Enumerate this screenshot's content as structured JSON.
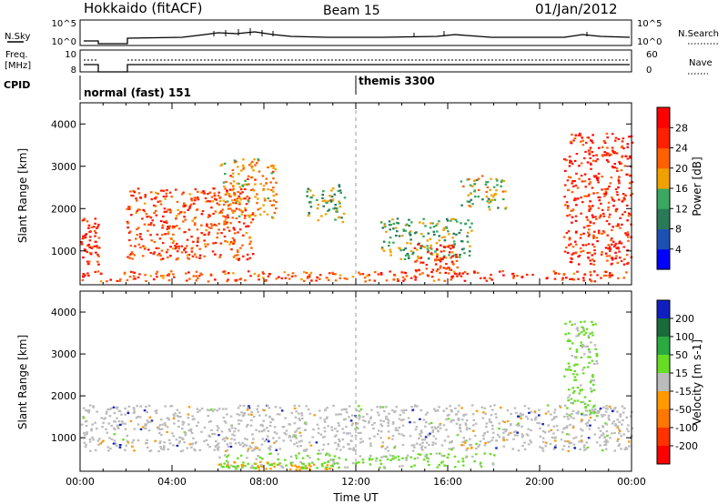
{
  "header": {
    "station": "Hokkaido (fitACF)",
    "beam": "Beam 15",
    "date": "01/Jan/2012"
  },
  "small_panels": {
    "nsky_label": "N.Sky",
    "nsearch_label": "N.Search",
    "freq_label_1": "Freq.",
    "freq_label_2": "[MHz]",
    "nave_label": "Nave",
    "cpid_label": "CPID",
    "nsky_ticks": [
      "10^5",
      "10^0"
    ],
    "nsearch_ticks": [
      "10^5",
      "10^0"
    ],
    "freq_ticks": [
      "10",
      "8"
    ],
    "nave_ticks": [
      "60",
      "0"
    ]
  },
  "cpid": {
    "modes": [
      {
        "name": "normal (fast) 151",
        "start_hour": 0
      },
      {
        "name": "themis 3300",
        "start_hour": 12
      }
    ]
  },
  "chart_data": [
    {
      "type": "heatmap",
      "title": "",
      "ylabel": "Slant Range [km]",
      "xlabel": "",
      "xlim_hours": [
        0,
        24
      ],
      "ylim": [
        200,
        4500
      ],
      "y_ticks": [
        "1000",
        "2000",
        "3000",
        "4000"
      ],
      "colorbar": {
        "label": "Power [dB]",
        "ticks": [
          "4",
          "8",
          "12",
          "16",
          "20",
          "24",
          "28"
        ],
        "colors": [
          "#0000ff",
          "#1e50b4",
          "#2a7a5a",
          "#3aa860",
          "#f0a000",
          "#ff6000",
          "#ff2000",
          "#ff0000"
        ]
      },
      "regions": [
        {
          "name": "ground-scatter-band",
          "t": [
            0,
            24
          ],
          "range": [
            300,
            550
          ],
          "level": 22
        },
        {
          "name": "early-band",
          "t": [
            0,
            0.8
          ],
          "range": [
            700,
            1800
          ],
          "level": 24
        },
        {
          "name": "morning-band",
          "t": [
            2,
            7.5
          ],
          "range": [
            800,
            2500
          ],
          "level": 22
        },
        {
          "name": "rising-arc",
          "t": [
            6,
            8.5
          ],
          "range": [
            1800,
            3200
          ],
          "level": 18
        },
        {
          "name": "mid-blob-1",
          "t": [
            9.8,
            11.5
          ],
          "range": [
            1700,
            2600
          ],
          "level": 12
        },
        {
          "name": "mid-cluster",
          "t": [
            13,
            17
          ],
          "range": [
            800,
            1800
          ],
          "level": 12
        },
        {
          "name": "mid-peak",
          "t": [
            14.5,
            16.5
          ],
          "range": [
            400,
            1200
          ],
          "level": 24
        },
        {
          "name": "late-blob",
          "t": [
            16.5,
            18.5
          ],
          "range": [
            2000,
            2800
          ],
          "level": 14
        },
        {
          "name": "evening-arc",
          "t": [
            21,
            24
          ],
          "range": [
            700,
            3800
          ],
          "level": 24
        }
      ]
    },
    {
      "type": "heatmap",
      "title": "",
      "ylabel": "Slant Range [km]",
      "xlabel": "Time UT",
      "xlim_hours": [
        0,
        24
      ],
      "ylim": [
        200,
        4500
      ],
      "x_ticks": [
        "00:00",
        "04:00",
        "08:00",
        "12:00",
        "16:00",
        "20:00",
        "00:00"
      ],
      "y_ticks": [
        "1000",
        "2000",
        "3000",
        "4000"
      ],
      "colorbar": {
        "label": "Velocity [m s-1]",
        "ticks": [
          "200",
          "100",
          "50",
          "15",
          "-15",
          "-50",
          "-100",
          "-200"
        ],
        "colors": [
          "#1020c0",
          "#1a6a3a",
          "#2aaa40",
          "#66dd22",
          "#bbbbbb",
          "#ff9900",
          "#ff7700",
          "#ff3300",
          "#ff0000"
        ]
      },
      "regions": [
        {
          "name": "ground-scatter",
          "t": [
            0,
            24
          ],
          "range": [
            700,
            1800
          ],
          "velocity": 0
        },
        {
          "name": "low-band",
          "t": [
            6,
            18
          ],
          "range": [
            300,
            650
          ],
          "velocity": 50
        },
        {
          "name": "morning-orange",
          "t": [
            6,
            11
          ],
          "range": [
            250,
            450
          ],
          "velocity": -50
        },
        {
          "name": "evening-green",
          "t": [
            21,
            22.5
          ],
          "range": [
            1500,
            3800
          ],
          "velocity": 50
        }
      ]
    }
  ]
}
